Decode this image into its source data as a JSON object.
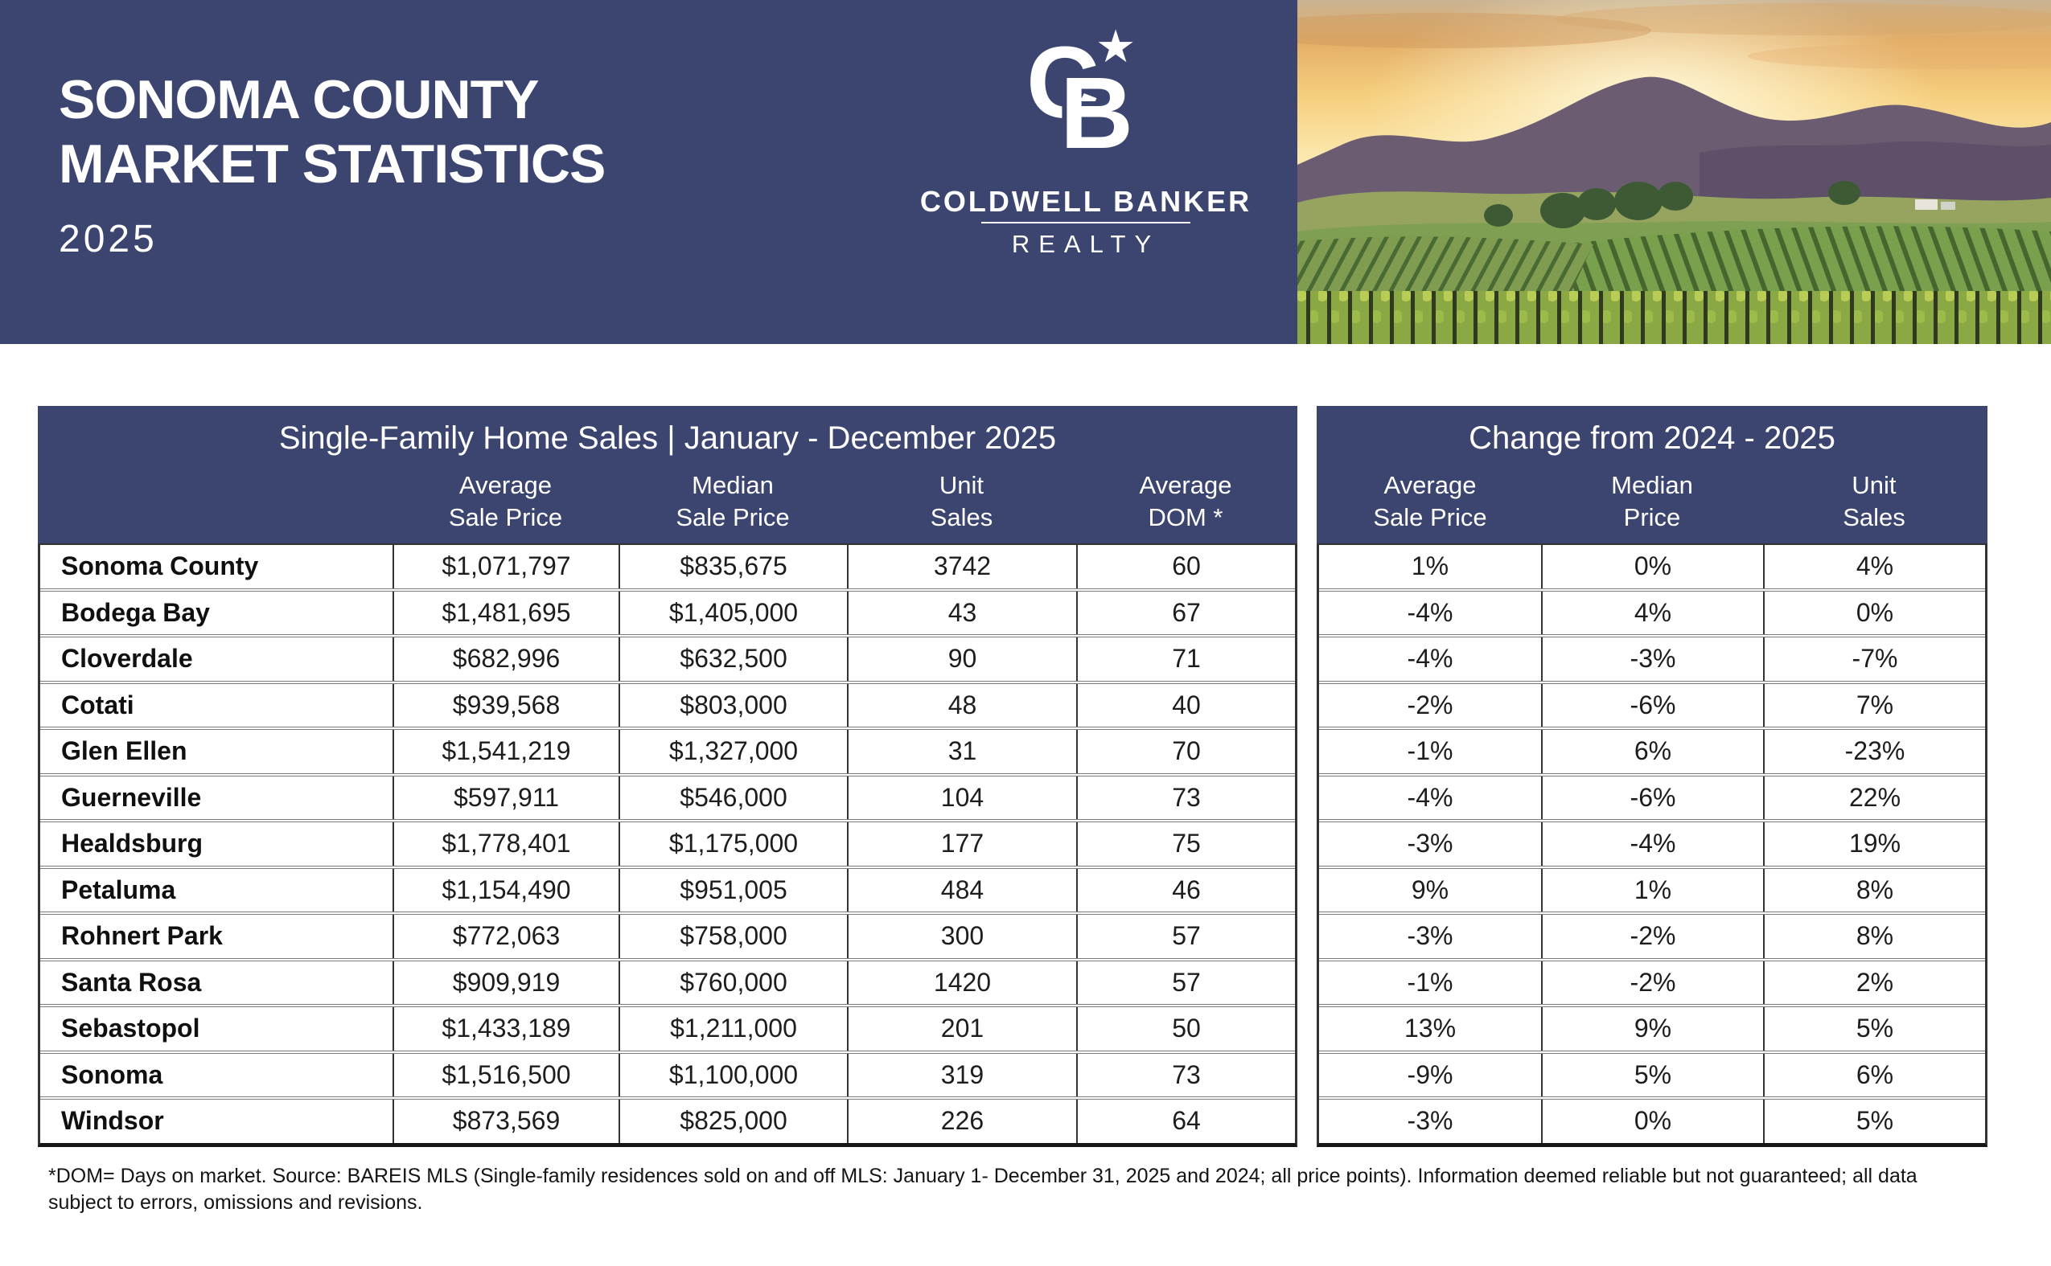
{
  "colors": {
    "navy": "#3C4470"
  },
  "banner": {
    "title_line1": "SONOMA COUNTY",
    "title_line2": "MARKET STATISTICS",
    "year": "2025",
    "logo": {
      "letter_c": "C",
      "letter_b": "B",
      "star": "★",
      "name": "COLDWELL BANKER",
      "division": "REALTY"
    }
  },
  "sales_table": {
    "title": "Single-Family Home Sales | January - December 2025",
    "columns": [
      {
        "l1": "Average",
        "l2": "Sale Price"
      },
      {
        "l1": "Median",
        "l2": "Sale Price"
      },
      {
        "l1": "Unit",
        "l2": "Sales"
      },
      {
        "l1": "Average",
        "l2": "DOM *"
      }
    ],
    "rows": [
      {
        "area": "Sonoma County",
        "avg": "$1,071,797",
        "med": "$835,675",
        "units": "3742",
        "dom": "60"
      },
      {
        "area": "Bodega Bay",
        "avg": "$1,481,695",
        "med": "$1,405,000",
        "units": "43",
        "dom": "67"
      },
      {
        "area": "Cloverdale",
        "avg": "$682,996",
        "med": "$632,500",
        "units": "90",
        "dom": "71"
      },
      {
        "area": "Cotati",
        "avg": "$939,568",
        "med": "$803,000",
        "units": "48",
        "dom": "40"
      },
      {
        "area": "Glen Ellen",
        "avg": "$1,541,219",
        "med": "$1,327,000",
        "units": "31",
        "dom": "70"
      },
      {
        "area": "Guerneville",
        "avg": "$597,911",
        "med": "$546,000",
        "units": "104",
        "dom": "73"
      },
      {
        "area": "Healdsburg",
        "avg": "$1,778,401",
        "med": "$1,175,000",
        "units": "177",
        "dom": "75"
      },
      {
        "area": "Petaluma",
        "avg": "$1,154,490",
        "med": "$951,005",
        "units": "484",
        "dom": "46"
      },
      {
        "area": "Rohnert Park",
        "avg": "$772,063",
        "med": "$758,000",
        "units": "300",
        "dom": "57"
      },
      {
        "area": "Santa Rosa",
        "avg": "$909,919",
        "med": "$760,000",
        "units": "1420",
        "dom": "57"
      },
      {
        "area": "Sebastopol",
        "avg": "$1,433,189",
        "med": "$1,211,000",
        "units": "201",
        "dom": "50"
      },
      {
        "area": "Sonoma",
        "avg": "$1,516,500",
        "med": "$1,100,000",
        "units": "319",
        "dom": "73"
      },
      {
        "area": "Windsor",
        "avg": "$873,569",
        "med": "$825,000",
        "units": "226",
        "dom": "64"
      }
    ]
  },
  "change_table": {
    "title": "Change from 2024 - 2025",
    "columns": [
      {
        "l1": "Average",
        "l2": "Sale Price"
      },
      {
        "l1": "Median",
        "l2": "Price"
      },
      {
        "l1": "Unit",
        "l2": "Sales"
      }
    ],
    "rows": [
      {
        "avg": "1%",
        "med": "0%",
        "units": "4%"
      },
      {
        "avg": "-4%",
        "med": "4%",
        "units": "0%"
      },
      {
        "avg": "-4%",
        "med": "-3%",
        "units": "-7%"
      },
      {
        "avg": "-2%",
        "med": "-6%",
        "units": "7%"
      },
      {
        "avg": "-1%",
        "med": "6%",
        "units": "-23%"
      },
      {
        "avg": "-4%",
        "med": "-6%",
        "units": "22%"
      },
      {
        "avg": "-3%",
        "med": "-4%",
        "units": "19%"
      },
      {
        "avg": "9%",
        "med": "1%",
        "units": "8%"
      },
      {
        "avg": "-3%",
        "med": "-2%",
        "units": "8%"
      },
      {
        "avg": "-1%",
        "med": "-2%",
        "units": "2%"
      },
      {
        "avg": "13%",
        "med": "9%",
        "units": "5%"
      },
      {
        "avg": "-9%",
        "med": "5%",
        "units": "6%"
      },
      {
        "avg": "-3%",
        "med": "0%",
        "units": "5%"
      }
    ]
  },
  "footnote": {
    "line1": "*DOM= Days on market. Source: BAREIS MLS (Single-family residences sold on and off MLS: January 1- December 31, 2025 and 2024; all price points). Information deemed reliable but not guaranteed; all data",
    "line2": "subject to errors, omissions and revisions."
  }
}
